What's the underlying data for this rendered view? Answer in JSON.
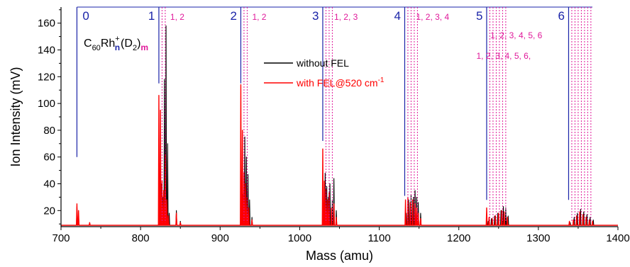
{
  "chart_data": {
    "type": "line",
    "xlabel": "Mass (amu)",
    "ylabel": "Ion Intensity (mV)",
    "xlim": [
      700,
      1400
    ],
    "ylim": [
      8,
      172
    ],
    "x_ticks": [
      700,
      800,
      900,
      1000,
      1100,
      1200,
      1300,
      1400
    ],
    "y_ticks": [
      20,
      40,
      60,
      80,
      100,
      120,
      140,
      160
    ],
    "x_tick_labels": [
      "700",
      "800",
      "900",
      "1000",
      "1100",
      "1200",
      "1300",
      "1400"
    ],
    "y_tick_labels": [
      "20",
      "40",
      "60",
      "80",
      "100",
      "120",
      "140",
      "160"
    ],
    "baseline": 9,
    "formula": {
      "base": "C",
      "sub60": "60",
      "rh": "Rh",
      "plus": "+",
      "n": "n",
      "d2": "(D",
      "sub2": "2",
      "close": ")",
      "m": "m"
    },
    "legend": [
      {
        "label": "without FEL",
        "color": "#000000"
      },
      {
        "label": "with FEL@520 cm",
        "sup": "-1",
        "color": "#ff0000"
      }
    ],
    "n_groups": [
      {
        "n": "0",
        "mass": 720,
        "line_bottom": 60,
        "m_label": "",
        "m_lines": []
      },
      {
        "n": "1",
        "mass": 823,
        "line_bottom": 115,
        "m_label": "1, 2",
        "m_lines": [
          827,
          831
        ]
      },
      {
        "n": "2",
        "mass": 926,
        "line_bottom": 115,
        "m_label": "1, 2",
        "m_lines": [
          930,
          934
        ]
      },
      {
        "n": "3",
        "mass": 1029,
        "line_bottom": 72,
        "m_label": "1, 2, 3",
        "m_lines": [
          1033,
          1037,
          1041
        ]
      },
      {
        "n": "4",
        "mass": 1132,
        "line_bottom": 31,
        "m_label": "1, 2, 3, 4",
        "m_lines": [
          1136,
          1140,
          1144,
          1148
        ]
      },
      {
        "n": "5",
        "mass": 1235,
        "line_bottom": 28,
        "m_label": "1, 2, 3, 4, 5, 6",
        "m_lines": [
          1239,
          1243,
          1247,
          1251,
          1255,
          1259
        ]
      },
      {
        "n": "6",
        "mass": 1338,
        "line_bottom": 28,
        "m_label": "1, 2, 3, 4, 5, 6,",
        "m_lines": [
          1342,
          1346,
          1350,
          1354,
          1358,
          1362,
          1366
        ]
      }
    ],
    "series": [
      {
        "name": "without FEL",
        "color": "#000000",
        "peaks": [
          [
            720,
            23
          ],
          [
            722,
            18
          ],
          [
            736,
            11
          ],
          [
            824,
            27
          ],
          [
            826,
            40
          ],
          [
            828,
            30
          ],
          [
            830,
            118
          ],
          [
            832,
            158
          ],
          [
            834,
            70
          ],
          [
            836,
            18
          ],
          [
            845,
            20
          ],
          [
            850,
            12
          ],
          [
            927,
            20
          ],
          [
            929,
            32
          ],
          [
            931,
            75
          ],
          [
            933,
            60
          ],
          [
            935,
            47
          ],
          [
            937,
            28
          ],
          [
            940,
            15
          ],
          [
            1030,
            22
          ],
          [
            1032,
            48
          ],
          [
            1034,
            38
          ],
          [
            1036,
            30
          ],
          [
            1038,
            40
          ],
          [
            1041,
            28
          ],
          [
            1043,
            44
          ],
          [
            1046,
            20
          ],
          [
            1134,
            18
          ],
          [
            1137,
            28
          ],
          [
            1140,
            32
          ],
          [
            1143,
            30
          ],
          [
            1145,
            35
          ],
          [
            1147,
            30
          ],
          [
            1149,
            26
          ],
          [
            1152,
            18
          ],
          [
            1237,
            12
          ],
          [
            1241,
            14
          ],
          [
            1245,
            16
          ],
          [
            1249,
            18
          ],
          [
            1253,
            20
          ],
          [
            1256,
            23
          ],
          [
            1259,
            22
          ],
          [
            1262,
            16
          ],
          [
            1340,
            11
          ],
          [
            1345,
            15
          ],
          [
            1349,
            18
          ],
          [
            1353,
            21
          ],
          [
            1357,
            19
          ],
          [
            1361,
            17
          ],
          [
            1365,
            15
          ],
          [
            1369,
            13
          ]
        ]
      },
      {
        "name": "with FEL@520 cm-1",
        "color": "#ff0000",
        "peaks": [
          [
            720,
            25
          ],
          [
            722,
            20
          ],
          [
            736,
            11
          ],
          [
            823,
            106
          ],
          [
            825,
            95
          ],
          [
            827,
            42
          ],
          [
            829,
            35
          ],
          [
            831,
            62
          ],
          [
            833,
            28
          ],
          [
            835,
            16
          ],
          [
            845,
            18
          ],
          [
            850,
            11
          ],
          [
            926,
            114
          ],
          [
            928,
            80
          ],
          [
            930,
            48
          ],
          [
            932,
            40
          ],
          [
            934,
            30
          ],
          [
            936,
            22
          ],
          [
            940,
            13
          ],
          [
            1029,
            66
          ],
          [
            1031,
            42
          ],
          [
            1033,
            36
          ],
          [
            1035,
            28
          ],
          [
            1037,
            33
          ],
          [
            1040,
            22
          ],
          [
            1043,
            25
          ],
          [
            1046,
            15
          ],
          [
            1133,
            28
          ],
          [
            1136,
            30
          ],
          [
            1139,
            26
          ],
          [
            1142,
            28
          ],
          [
            1145,
            25
          ],
          [
            1147,
            22
          ],
          [
            1149,
            18
          ],
          [
            1152,
            14
          ],
          [
            1235,
            22
          ],
          [
            1238,
            15
          ],
          [
            1242,
            14
          ],
          [
            1246,
            16
          ],
          [
            1250,
            18
          ],
          [
            1254,
            20
          ],
          [
            1257,
            19
          ],
          [
            1261,
            15
          ],
          [
            1339,
            12
          ],
          [
            1344,
            13
          ],
          [
            1348,
            16
          ],
          [
            1352,
            19
          ],
          [
            1356,
            17
          ],
          [
            1360,
            15
          ],
          [
            1364,
            13
          ],
          [
            1368,
            12
          ]
        ]
      }
    ]
  }
}
